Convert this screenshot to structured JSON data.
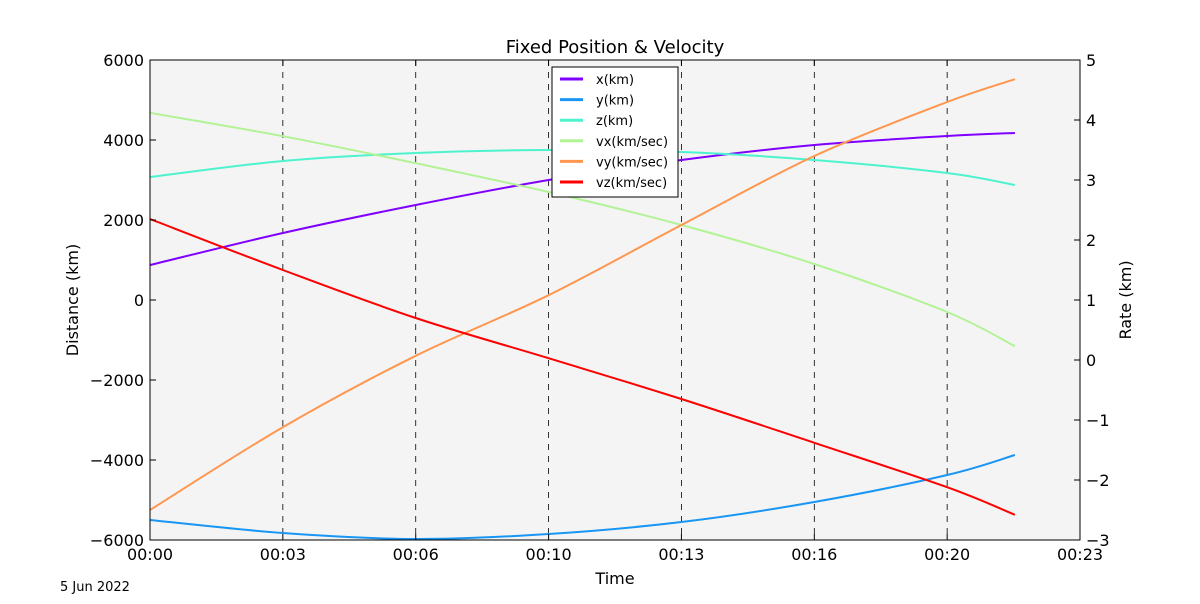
{
  "footer_date": "5 Jun 2022",
  "chart_data": {
    "type": "line",
    "title": "Fixed Position & Velocity",
    "xlabel": "Time",
    "ylabel_left": "Distance (km)",
    "ylabel_right": "Rate (km)",
    "xlim_minutes": [
      0,
      23.333
    ],
    "ylim_left": [
      -6000,
      6000
    ],
    "ylim_right": [
      -3,
      5
    ],
    "x_ticks": [
      {
        "value": 0,
        "label": "00:00"
      },
      {
        "value": 3.333,
        "label": "00:03"
      },
      {
        "value": 6.667,
        "label": "00:06"
      },
      {
        "value": 10,
        "label": "00:10"
      },
      {
        "value": 13.333,
        "label": "00:13"
      },
      {
        "value": 16.667,
        "label": "00:16"
      },
      {
        "value": 20,
        "label": "00:20"
      },
      {
        "value": 23.333,
        "label": "00:23"
      }
    ],
    "y_ticks_left": [
      "6000",
      "4000",
      "2000",
      "0",
      "−2000",
      "−4000",
      "−6000"
    ],
    "y_ticks_left_values": [
      6000,
      4000,
      2000,
      0,
      -2000,
      -4000,
      -6000
    ],
    "y_ticks_right": [
      "5",
      "4",
      "3",
      "2",
      "1",
      "0",
      "−1",
      "−2",
      "−3"
    ],
    "y_ticks_right_values": [
      5,
      4,
      3,
      2,
      1,
      0,
      -1,
      -2,
      -3
    ],
    "grid": "vertical dashed at x ticks",
    "legend_placement": "upper center",
    "background": "#f4f4f4",
    "x_minutes": [
      0,
      3.333,
      6.667,
      10,
      13.333,
      16.667,
      20,
      21.7
    ],
    "series": [
      {
        "name": "x(km)",
        "axis": "left",
        "color": "#8000ff",
        "values": [
          875,
          1675,
          2375,
          3000,
          3500,
          3875,
          4100,
          4175
        ]
      },
      {
        "name": "y(km)",
        "axis": "left",
        "color": "#1996f3",
        "values": [
          -5500,
          -5825,
          -5975,
          -5850,
          -5550,
          -5050,
          -4375,
          -3875
        ]
      },
      {
        "name": "z(km)",
        "axis": "left",
        "color": "#4df3ce",
        "values": [
          3075,
          3475,
          3675,
          3750,
          3700,
          3500,
          3175,
          2875
        ]
      },
      {
        "name": "vx(km/sec)",
        "axis": "right",
        "color": "#b2f396",
        "values": [
          4.12,
          3.73,
          3.28,
          2.8,
          2.25,
          1.6,
          0.8,
          0.23
        ]
      },
      {
        "name": "vy(km/sec)",
        "axis": "right",
        "color": "#ff964f",
        "values": [
          -2.5,
          -1.12,
          0.07,
          1.08,
          2.25,
          3.4,
          4.3,
          4.68
        ]
      },
      {
        "name": "vz(km/sec)",
        "axis": "right",
        "color": "#ff0000",
        "values": [
          2.35,
          1.5,
          0.7,
          0.03,
          -0.65,
          -1.38,
          -2.12,
          -2.58
        ]
      }
    ]
  }
}
